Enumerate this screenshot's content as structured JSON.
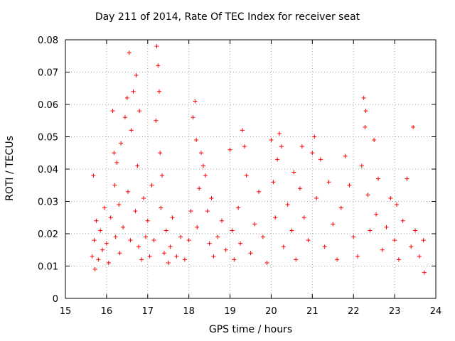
{
  "chart_data": {
    "type": "scatter",
    "title": "Day 211 of 2014, Rate Of TEC Index for receiver seat",
    "xlabel": "GPS time / hours",
    "ylabel": "ROTI / TECUs",
    "xlim": [
      15,
      24
    ],
    "ylim": [
      0,
      0.08
    ],
    "x_ticks": [
      "15",
      "16",
      "17",
      "18",
      "19",
      "20",
      "21",
      "22",
      "23",
      "24"
    ],
    "y_ticks": [
      "0",
      "0.01",
      "0.02",
      "0.03",
      "0.04",
      "0.05",
      "0.06",
      "0.07",
      "0.08"
    ],
    "grid": true,
    "marker": "+",
    "marker_color": "#ff0000",
    "series": [
      {
        "name": "ROTI",
        "x": [
          15.65,
          15.68,
          15.7,
          15.72,
          15.75,
          15.8,
          15.85,
          15.9,
          15.95,
          16.0,
          16.05,
          16.1,
          16.15,
          16.18,
          16.2,
          16.22,
          16.25,
          16.3,
          16.32,
          16.35,
          16.4,
          16.45,
          16.5,
          16.52,
          16.55,
          16.58,
          16.6,
          16.65,
          16.7,
          16.72,
          16.75,
          16.78,
          16.8,
          16.85,
          16.9,
          16.95,
          17.0,
          17.05,
          17.1,
          17.15,
          17.2,
          17.22,
          17.25,
          17.28,
          17.3,
          17.32,
          17.35,
          17.4,
          17.45,
          17.5,
          17.55,
          17.6,
          17.7,
          17.8,
          17.9,
          18.0,
          18.05,
          18.1,
          18.15,
          18.18,
          18.2,
          18.25,
          18.3,
          18.35,
          18.4,
          18.45,
          18.5,
          18.55,
          18.6,
          18.7,
          18.8,
          18.9,
          19.0,
          19.05,
          19.1,
          19.2,
          19.25,
          19.3,
          19.35,
          19.4,
          19.5,
          19.6,
          19.7,
          19.8,
          19.9,
          20.0,
          20.05,
          20.1,
          20.15,
          20.2,
          20.25,
          20.3,
          20.4,
          20.5,
          20.55,
          20.6,
          20.7,
          20.75,
          20.8,
          20.9,
          21.0,
          21.05,
          21.1,
          21.2,
          21.3,
          21.4,
          21.5,
          21.6,
          21.7,
          21.8,
          21.9,
          22.0,
          22.1,
          22.2,
          22.25,
          22.28,
          22.3,
          22.35,
          22.4,
          22.5,
          22.55,
          22.6,
          22.7,
          22.8,
          22.9,
          23.0,
          23.05,
          23.1,
          23.2,
          23.3,
          23.4,
          23.45,
          23.5,
          23.6,
          23.7,
          23.72
        ],
        "y": [
          0.013,
          0.038,
          0.018,
          0.009,
          0.024,
          0.012,
          0.021,
          0.015,
          0.028,
          0.017,
          0.011,
          0.025,
          0.058,
          0.045,
          0.035,
          0.019,
          0.042,
          0.029,
          0.014,
          0.048,
          0.022,
          0.056,
          0.062,
          0.033,
          0.076,
          0.018,
          0.052,
          0.064,
          0.027,
          0.069,
          0.041,
          0.016,
          0.058,
          0.012,
          0.031,
          0.019,
          0.024,
          0.013,
          0.035,
          0.018,
          0.055,
          0.078,
          0.072,
          0.064,
          0.045,
          0.028,
          0.038,
          0.014,
          0.021,
          0.011,
          0.016,
          0.025,
          0.013,
          0.019,
          0.012,
          0.018,
          0.027,
          0.056,
          0.061,
          0.049,
          0.022,
          0.034,
          0.045,
          0.041,
          0.038,
          0.027,
          0.017,
          0.031,
          0.013,
          0.019,
          0.024,
          0.015,
          0.046,
          0.021,
          0.012,
          0.028,
          0.017,
          0.052,
          0.047,
          0.038,
          0.014,
          0.023,
          0.033,
          0.019,
          0.011,
          0.049,
          0.036,
          0.025,
          0.043,
          0.051,
          0.047,
          0.016,
          0.029,
          0.021,
          0.039,
          0.012,
          0.034,
          0.047,
          0.025,
          0.018,
          0.045,
          0.05,
          0.031,
          0.043,
          0.016,
          0.036,
          0.023,
          0.012,
          0.028,
          0.044,
          0.035,
          0.019,
          0.013,
          0.041,
          0.062,
          0.053,
          0.058,
          0.032,
          0.021,
          0.049,
          0.026,
          0.037,
          0.015,
          0.022,
          0.031,
          0.018,
          0.029,
          0.012,
          0.024,
          0.037,
          0.016,
          0.053,
          0.021,
          0.013,
          0.018,
          0.008
        ]
      }
    ]
  }
}
